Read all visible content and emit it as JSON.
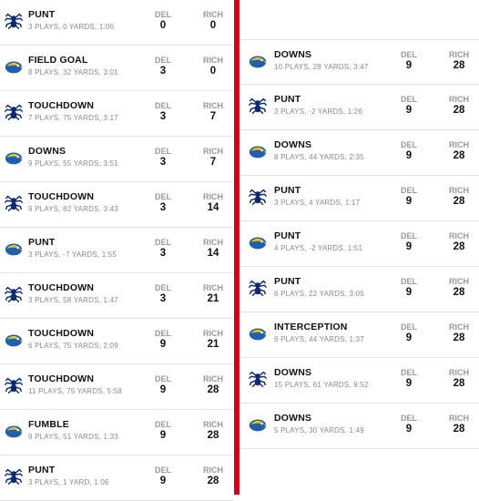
{
  "teams": {
    "away_abbr": "DEL",
    "home_abbr": "RICH",
    "del_logo": "blue-hen-logo",
    "rich_logo": "spider-logo"
  },
  "colors": {
    "divider": "#d0021b",
    "del_blue": "#1f5fb0",
    "del_yellow": "#f2c500",
    "rich_navy": "#0b2a6f"
  },
  "left_drives": [
    {
      "team": "rich",
      "result": "PUNT",
      "detail": "3 PLAYS, 0 YARDS, 1:06",
      "del": "0",
      "rich": "0"
    },
    {
      "team": "del",
      "result": "FIELD GOAL",
      "detail": "8 PLAYS, 32 YARDS, 3:01",
      "del": "3",
      "rich": "0"
    },
    {
      "team": "rich",
      "result": "TOUCHDOWN",
      "detail": "7 PLAYS, 75 YARDS, 3:17",
      "del": "3",
      "rich": "7"
    },
    {
      "team": "del",
      "result": "DOWNS",
      "detail": "9 PLAYS, 55 YARDS, 3:51",
      "del": "3",
      "rich": "7"
    },
    {
      "team": "rich",
      "result": "TOUCHDOWN",
      "detail": "9 PLAYS, 82 YARDS, 3:43",
      "del": "3",
      "rich": "14"
    },
    {
      "team": "del",
      "result": "PUNT",
      "detail": "3 PLAYS, -7 YARDS, 1:55",
      "del": "3",
      "rich": "14"
    },
    {
      "team": "rich",
      "result": "TOUCHDOWN",
      "detail": "3 PLAYS, 58 YARDS, 1:47",
      "del": "3",
      "rich": "21"
    },
    {
      "team": "del",
      "result": "TOUCHDOWN",
      "detail": "6 PLAYS, 75 YARDS, 2:09",
      "del": "9",
      "rich": "21"
    },
    {
      "team": "rich",
      "result": "TOUCHDOWN",
      "detail": "11 PLAYS, 75 YARDS, 5:58",
      "del": "9",
      "rich": "28"
    },
    {
      "team": "del",
      "result": "FUMBLE",
      "detail": "9 PLAYS, 51 YARDS, 1:33",
      "del": "9",
      "rich": "28"
    },
    {
      "team": "rich",
      "result": "PUNT",
      "detail": "3 PLAYS, 1 YARD, 1:06",
      "del": "9",
      "rich": "28"
    }
  ],
  "right_drives": [
    {
      "team": "del",
      "result": "DOWNS",
      "detail": "10 PLAYS, 28 YARDS, 3:47",
      "del": "9",
      "rich": "28"
    },
    {
      "team": "rich",
      "result": "PUNT",
      "detail": "3 PLAYS, -2 YARDS, 1:26",
      "del": "9",
      "rich": "28"
    },
    {
      "team": "del",
      "result": "DOWNS",
      "detail": "8 PLAYS, 44 YARDS, 2:35",
      "del": "9",
      "rich": "28"
    },
    {
      "team": "rich",
      "result": "PUNT",
      "detail": "3 PLAYS, 4 YARDS, 1:17",
      "del": "9",
      "rich": "28"
    },
    {
      "team": "del",
      "result": "PUNT",
      "detail": "4 PLAYS, -2 YARDS, 1:51",
      "del": "9",
      "rich": "28"
    },
    {
      "team": "rich",
      "result": "PUNT",
      "detail": "6 PLAYS, 22 YARDS, 3:05",
      "del": "9",
      "rich": "28"
    },
    {
      "team": "del",
      "result": "INTERCEPTION",
      "detail": "6 PLAYS, 44 YARDS, 1:37",
      "del": "9",
      "rich": "28"
    },
    {
      "team": "rich",
      "result": "DOWNS",
      "detail": "15 PLAYS, 61 YARDS, 9:52",
      "del": "9",
      "rich": "28"
    },
    {
      "team": "del",
      "result": "DOWNS",
      "detail": "5 PLAYS, 30 YARDS, 1:49",
      "del": "9",
      "rich": "28"
    }
  ]
}
